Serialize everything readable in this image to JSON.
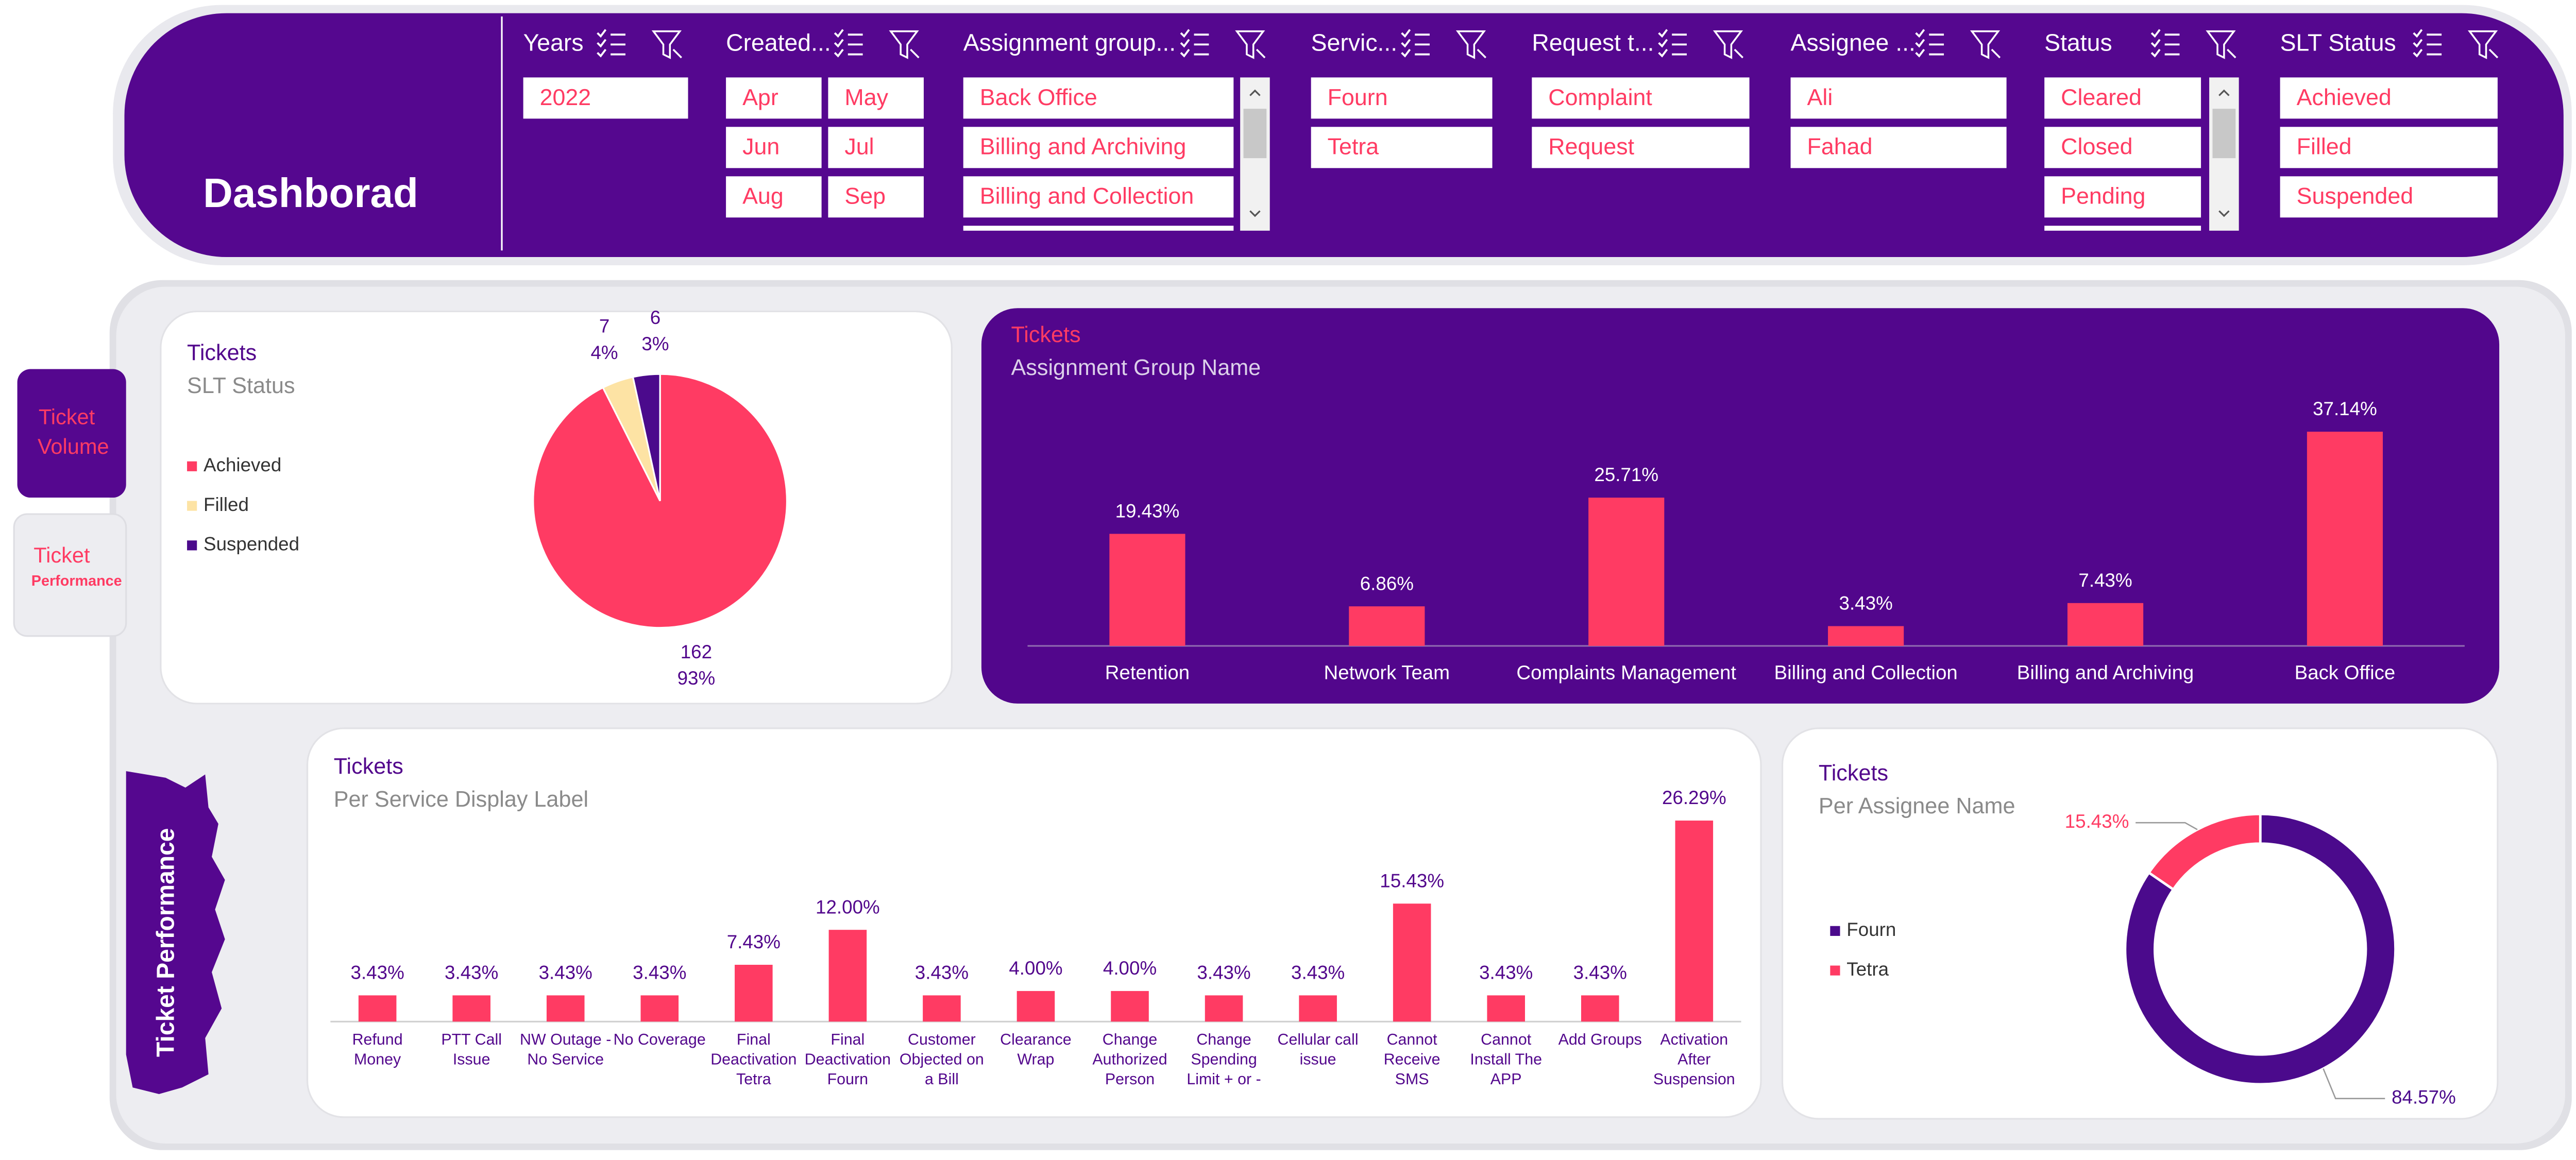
{
  "header": {
    "title": "Dashborad"
  },
  "slicers": [
    {
      "title": "Years",
      "items": [
        "2022"
      ]
    },
    {
      "title": "Created...",
      "items": [
        "Apr",
        "May",
        "Jun",
        "Jul",
        "Aug",
        "Sep"
      ]
    },
    {
      "title": "Assignment group...",
      "items": [
        "Back Office",
        "Billing and Archiving",
        "Billing and Collection"
      ]
    },
    {
      "title": "Servic...",
      "items": [
        "Fourn",
        "Tetra"
      ]
    },
    {
      "title": "Request t...",
      "items": [
        "Complaint",
        "Request"
      ]
    },
    {
      "title": "Assignee ...",
      "items": [
        "Ali",
        "Fahad"
      ]
    },
    {
      "title": "Status",
      "items": [
        "Cleared",
        "Closed",
        "Pending"
      ]
    },
    {
      "title": "SLT Status",
      "items": [
        "Achieved",
        "Filled",
        "Suspended"
      ]
    }
  ],
  "tabs": [
    {
      "line1": "Ticket",
      "line2": "Volume"
    },
    {
      "line1": "Ticket",
      "line2": "Performance"
    }
  ],
  "side_label": "Ticket Performance",
  "chart_data": [
    {
      "type": "pie",
      "title": "Tickets",
      "subtitle": "SLT Status",
      "categories": [
        "Achieved",
        "Filled",
        "Suspended"
      ],
      "values": [
        162,
        7,
        6
      ],
      "percent_labels": [
        "93%",
        "4%",
        "3%"
      ],
      "colors": [
        "#ff3b63",
        "#fde3a4",
        "#4b0a8c"
      ]
    },
    {
      "type": "bar",
      "title": "Tickets",
      "subtitle": "Assignment Group Name",
      "categories": [
        "Retention",
        "Network Team",
        "Complaints Management",
        "Billing and Collection",
        "Billing and Archiving",
        "Back Office"
      ],
      "values": [
        19.43,
        6.86,
        25.71,
        3.43,
        7.43,
        37.14
      ],
      "value_labels": [
        "19.43%",
        "6.86%",
        "25.71%",
        "3.43%",
        "7.43%",
        "37.14%"
      ],
      "color": "#ff3b63"
    },
    {
      "type": "bar",
      "title": "Tickets",
      "subtitle": "Per Service Display Label",
      "categories": [
        "Refund Money",
        "PTT Call Issue",
        "NW Outage - No Service",
        "No Coverage",
        "Final Deactivation Tetra",
        "Final Deactivation Fourn",
        "Customer Objected on a Bill",
        "Clearance Wrap",
        "Change Authorized Person",
        "Change Spending Limit + or -",
        "Cellular call issue",
        "Cannot Receive SMS",
        "Cannot Install The APP",
        "Add Groups",
        "Activation After Suspension"
      ],
      "values": [
        3.43,
        3.43,
        3.43,
        3.43,
        7.43,
        12.0,
        3.43,
        4.0,
        4.0,
        3.43,
        3.43,
        15.43,
        3.43,
        3.43,
        26.29
      ],
      "value_labels": [
        "3.43%",
        "3.43%",
        "3.43%",
        "3.43%",
        "7.43%",
        "12.00%",
        "3.43%",
        "4.00%",
        "4.00%",
        "3.43%",
        "3.43%",
        "15.43%",
        "3.43%",
        "3.43%",
        "26.29%"
      ],
      "color": "#ff3b63"
    },
    {
      "type": "donut",
      "title": "Tickets",
      "subtitle": "Per Assignee Name",
      "categories": [
        "Fourn",
        "Tetra"
      ],
      "values": [
        84.57,
        15.43
      ],
      "value_labels": [
        "84.57%",
        "15.43%"
      ],
      "colors": [
        "#4b0a8c",
        "#ff3b63"
      ]
    }
  ]
}
